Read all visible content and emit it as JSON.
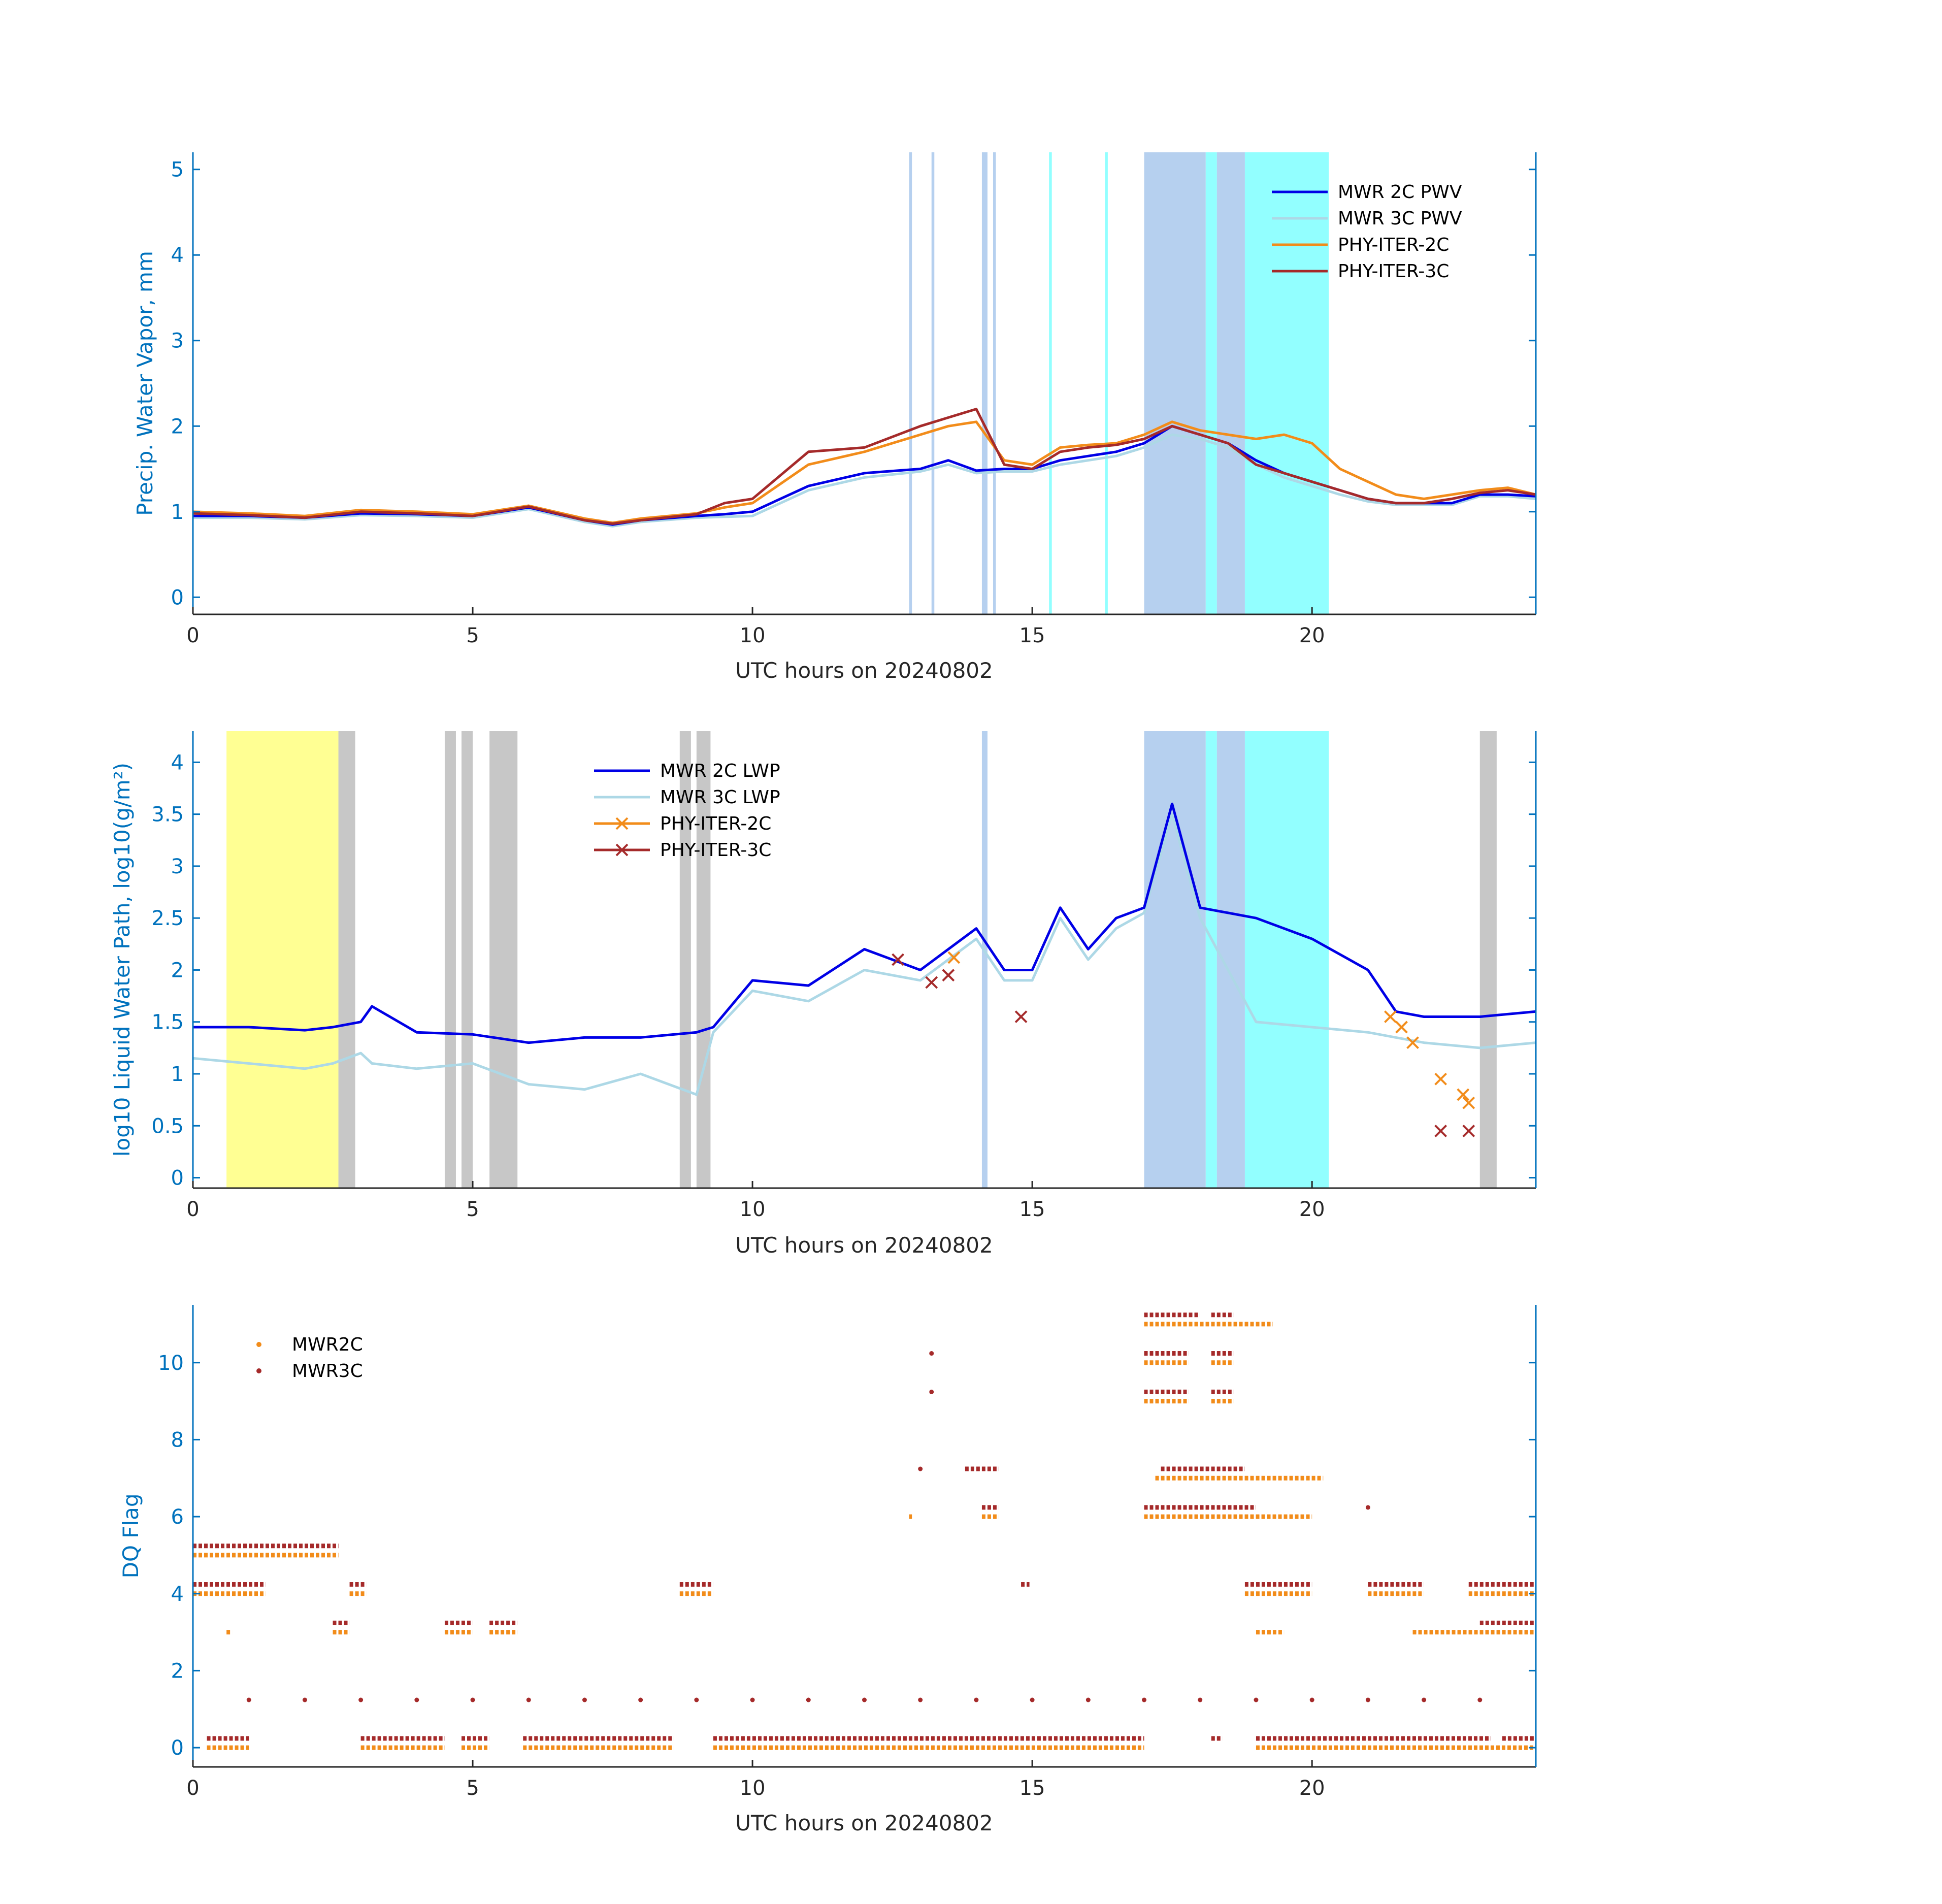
{
  "colors": {
    "mwr2c": "#0000E6",
    "mwr3c": "#ADD8E6",
    "phy2c": "#F28C1A",
    "phy3c": "#A52A2A",
    "axis_y": "#0072BD",
    "axis_x": "#262626",
    "shade_blue": "#A9C8EC",
    "shade_cyan": "#7FFFFF",
    "shade_gray": "#BDBDBD",
    "shade_yellow": "#FFFF80"
  },
  "chart_data": [
    {
      "type": "line",
      "title": "",
      "xlabel": "UTC hours on 20240802",
      "ylabel": "Precip. Water Vapor, mm",
      "xlim": [
        0,
        24
      ],
      "ylim": [
        -0.2,
        5.2
      ],
      "xticks": [
        0,
        5,
        10,
        15,
        20
      ],
      "yticks": [
        0,
        1,
        2,
        3,
        4,
        5
      ],
      "grid": false,
      "legend_position": "top-right",
      "legend": [
        "MWR 2C PWV",
        "MWR 3C PWV",
        "PHY-ITER-2C",
        "PHY-ITER-3C"
      ],
      "x": [
        0,
        1,
        2,
        3,
        4,
        5,
        6,
        7,
        7.5,
        8,
        9,
        9.5,
        10,
        11,
        12,
        13,
        13.5,
        14,
        14.5,
        15,
        15.5,
        16,
        16.5,
        17,
        17.5,
        18,
        18.5,
        19,
        19.5,
        20,
        20.5,
        21,
        21.5,
        22,
        22.5,
        23,
        23.5,
        24
      ],
      "series": [
        {
          "name": "MWR 2C PWV",
          "values": [
            0.95,
            0.95,
            0.93,
            0.98,
            0.97,
            0.95,
            1.05,
            0.9,
            0.85,
            0.9,
            0.95,
            0.97,
            1.0,
            1.3,
            1.45,
            1.5,
            1.6,
            1.48,
            1.5,
            1.5,
            1.6,
            1.65,
            1.7,
            1.8,
            2.0,
            1.9,
            1.8,
            1.6,
            1.45,
            1.35,
            1.25,
            1.15,
            1.1,
            1.1,
            1.1,
            1.2,
            1.2,
            1.18
          ]
        },
        {
          "name": "MWR 3C PWV",
          "values": [
            0.93,
            0.93,
            0.91,
            0.96,
            0.95,
            0.93,
            1.03,
            0.88,
            0.83,
            0.88,
            0.93,
            0.94,
            0.95,
            1.25,
            1.4,
            1.47,
            1.55,
            1.45,
            1.47,
            1.47,
            1.55,
            1.6,
            1.65,
            1.75,
            1.9,
            1.85,
            1.75,
            1.55,
            1.4,
            1.3,
            1.2,
            1.12,
            1.08,
            1.08,
            1.08,
            1.18,
            1.18,
            1.15
          ]
        },
        {
          "name": "PHY-ITER-2C",
          "values": [
            1.0,
            0.98,
            0.95,
            1.02,
            1.0,
            0.97,
            1.07,
            0.92,
            0.87,
            0.92,
            0.98,
            1.05,
            1.1,
            1.55,
            1.7,
            1.9,
            2.0,
            2.05,
            1.6,
            1.55,
            1.75,
            1.78,
            1.8,
            1.9,
            2.05,
            1.95,
            1.9,
            1.85,
            1.9,
            1.8,
            1.5,
            1.35,
            1.2,
            1.15,
            1.2,
            1.25,
            1.28,
            1.2
          ]
        },
        {
          "name": "PHY-ITER-3C",
          "values": [
            0.98,
            0.96,
            0.93,
            1.0,
            0.98,
            0.95,
            1.06,
            0.9,
            0.86,
            0.9,
            0.97,
            1.1,
            1.15,
            1.7,
            1.75,
            2.0,
            2.1,
            2.2,
            1.55,
            1.5,
            1.7,
            1.75,
            1.78,
            1.85,
            2.0,
            1.9,
            1.8,
            1.55,
            1.45,
            1.35,
            1.25,
            1.15,
            1.1,
            1.1,
            1.15,
            1.22,
            1.25,
            1.2
          ]
        }
      ],
      "shaded_spans": [
        {
          "color": "blue",
          "x": [
            12.8,
            12.85
          ]
        },
        {
          "color": "blue",
          "x": [
            13.2,
            13.25
          ]
        },
        {
          "color": "blue",
          "x": [
            14.1,
            14.2
          ]
        },
        {
          "color": "blue",
          "x": [
            14.3,
            14.35
          ]
        },
        {
          "color": "cyan",
          "x": [
            15.3,
            15.35
          ]
        },
        {
          "color": "cyan",
          "x": [
            16.3,
            16.35
          ]
        },
        {
          "color": "blue",
          "x": [
            17.0,
            18.1
          ]
        },
        {
          "color": "cyan",
          "x": [
            18.1,
            18.3
          ]
        },
        {
          "color": "blue",
          "x": [
            18.3,
            18.8
          ]
        },
        {
          "color": "cyan",
          "x": [
            18.8,
            20.3
          ]
        }
      ]
    },
    {
      "type": "line",
      "title": "",
      "xlabel": "UTC hours on 20240802",
      "ylabel": "log10 Liquid Water Path, log10(g/m²)",
      "xlim": [
        0,
        24
      ],
      "ylim": [
        -0.1,
        4.3
      ],
      "xticks": [
        0,
        5,
        10,
        15,
        20
      ],
      "yticks": [
        0,
        0.5,
        1,
        1.5,
        2,
        2.5,
        3,
        3.5,
        4
      ],
      "grid": false,
      "legend_position": "top-center",
      "legend": [
        "MWR 2C LWP",
        "MWR 3C LWP",
        "PHY-ITER-2C",
        "PHY-ITER-3C"
      ],
      "x": [
        0,
        1,
        2,
        2.5,
        3,
        3.2,
        4,
        5,
        6,
        7,
        8,
        9,
        9.3,
        10,
        11,
        12,
        13,
        14,
        14.5,
        15,
        15.5,
        16,
        16.5,
        17,
        17.5,
        18,
        19,
        20,
        21,
        21.5,
        22,
        23,
        24
      ],
      "series": [
        {
          "name": "MWR 2C LWP",
          "values": [
            1.45,
            1.45,
            1.42,
            1.45,
            1.5,
            1.65,
            1.4,
            1.38,
            1.3,
            1.35,
            1.35,
            1.4,
            1.45,
            1.9,
            1.85,
            2.2,
            2.0,
            2.4,
            2.0,
            2.0,
            2.6,
            2.2,
            2.5,
            2.6,
            3.6,
            2.6,
            2.5,
            2.3,
            2.0,
            1.6,
            1.55,
            1.55,
            1.6
          ]
        },
        {
          "name": "MWR 3C LWP",
          "values": [
            1.15,
            1.1,
            1.05,
            1.1,
            1.2,
            1.1,
            1.05,
            1.1,
            0.9,
            0.85,
            1.0,
            0.8,
            1.4,
            1.8,
            1.7,
            2.0,
            1.9,
            2.3,
            1.9,
            1.9,
            2.5,
            2.1,
            2.4,
            2.55,
            3.5,
            2.5,
            1.5,
            1.45,
            1.4,
            1.35,
            1.3,
            1.25,
            1.3
          ]
        }
      ],
      "markers": [
        {
          "series": "PHY-ITER-3C",
          "x": [
            12.6,
            13.2,
            13.5,
            14.8,
            22.3,
            22.8
          ],
          "y": [
            2.1,
            1.88,
            1.95,
            1.55,
            0.45,
            0.45
          ]
        },
        {
          "series": "PHY-ITER-2C",
          "x": [
            13.6,
            21.4,
            21.6,
            21.8,
            22.3,
            22.7,
            22.8
          ],
          "y": [
            2.12,
            1.55,
            1.45,
            1.3,
            0.95,
            0.8,
            0.72
          ]
        }
      ],
      "shaded_spans": [
        {
          "color": "yellow",
          "x": [
            0.6,
            2.6
          ]
        },
        {
          "color": "gray",
          "x": [
            2.6,
            2.9
          ]
        },
        {
          "color": "gray",
          "x": [
            4.5,
            4.7
          ]
        },
        {
          "color": "gray",
          "x": [
            4.8,
            5.0
          ]
        },
        {
          "color": "gray",
          "x": [
            5.3,
            5.8
          ]
        },
        {
          "color": "gray",
          "x": [
            8.7,
            8.9
          ]
        },
        {
          "color": "gray",
          "x": [
            9.0,
            9.25
          ]
        },
        {
          "color": "blue",
          "x": [
            14.1,
            14.2
          ]
        },
        {
          "color": "blue",
          "x": [
            17.0,
            18.1
          ]
        },
        {
          "color": "cyan",
          "x": [
            18.1,
            18.3
          ]
        },
        {
          "color": "blue",
          "x": [
            18.3,
            18.8
          ]
        },
        {
          "color": "cyan",
          "x": [
            18.8,
            20.3
          ]
        },
        {
          "color": "gray",
          "x": [
            23.0,
            23.3
          ]
        }
      ]
    },
    {
      "type": "scatter",
      "title": "",
      "xlabel": "UTC hours on 20240802",
      "ylabel": "DQ Flag",
      "xlim": [
        0,
        24
      ],
      "ylim": [
        -0.5,
        11.5
      ],
      "xticks": [
        0,
        5,
        10,
        15,
        20
      ],
      "yticks": [
        0,
        2,
        4,
        6,
        8,
        10
      ],
      "grid": false,
      "legend_position": "top-left",
      "legend": [
        "MWR2C",
        "MWR3C"
      ],
      "series": [
        {
          "name": "MWR2C",
          "segments": [
            {
              "y": 0,
              "x": [
                [
                  0.25,
                  1.0
                ],
                [
                  3.0,
                  4.5
                ],
                [
                  4.8,
                  5.3
                ],
                [
                  5.9,
                  8.6
                ],
                [
                  9.3,
                  17.0
                ],
                [
                  19.0,
                  24.0
                ]
              ]
            },
            {
              "y": 3,
              "x": [
                [
                  0.6,
                  0.7
                ],
                [
                  2.5,
                  2.8
                ],
                [
                  4.5,
                  5.0
                ],
                [
                  5.3,
                  5.8
                ],
                [
                  19.0,
                  19.5
                ],
                [
                  21.8,
                  24.0
                ]
              ]
            },
            {
              "y": 4,
              "x": [
                [
                  0.0,
                  1.3
                ],
                [
                  2.8,
                  3.1
                ],
                [
                  8.7,
                  9.3
                ],
                [
                  18.8,
                  20.0
                ],
                [
                  21.0,
                  22.0
                ],
                [
                  22.8,
                  24.0
                ]
              ]
            },
            {
              "y": 5,
              "x": [
                [
                  0.0,
                  2.6
                ]
              ]
            },
            {
              "y": 6,
              "x": [
                [
                  12.8,
                  12.85
                ],
                [
                  14.1,
                  14.4
                ],
                [
                  17.0,
                  20.0
                ]
              ]
            },
            {
              "y": 7,
              "x": [
                [
                  17.2,
                  20.2
                ]
              ]
            },
            {
              "y": 9,
              "x": [
                [
                  17.0,
                  17.8
                ],
                [
                  18.2,
                  18.6
                ]
              ]
            },
            {
              "y": 10,
              "x": [
                [
                  17.0,
                  17.8
                ],
                [
                  18.2,
                  18.6
                ]
              ]
            },
            {
              "y": 11,
              "x": [
                [
                  17.0,
                  19.3
                ]
              ]
            }
          ]
        },
        {
          "name": "MWR3C",
          "segments": [
            {
              "y": 0,
              "x": [
                [
                  0.25,
                  1.0
                ],
                [
                  3.0,
                  4.5
                ],
                [
                  4.8,
                  5.3
                ],
                [
                  5.9,
                  8.6
                ],
                [
                  9.3,
                  17.0
                ],
                [
                  18.2,
                  18.4
                ],
                [
                  19.0,
                  23.2
                ],
                [
                  23.4,
                  24.0
                ]
              ]
            },
            {
              "y": 1,
              "x": [
                [
                  1.0,
                  1.0
                ],
                [
                  2.0,
                  2.0
                ],
                [
                  3.0,
                  3.0
                ],
                [
                  4.0,
                  4.0
                ],
                [
                  5.0,
                  5.0
                ],
                [
                  6.0,
                  6.0
                ],
                [
                  7.0,
                  7.0
                ],
                [
                  8.0,
                  8.0
                ],
                [
                  9.0,
                  9.0
                ],
                [
                  10.0,
                  10.0
                ],
                [
                  11.0,
                  11.0
                ],
                [
                  12.0,
                  12.0
                ],
                [
                  13.0,
                  13.0
                ],
                [
                  14.0,
                  14.0
                ],
                [
                  15.0,
                  15.0
                ],
                [
                  16.0,
                  16.0
                ],
                [
                  17.0,
                  17.0
                ],
                [
                  18.0,
                  18.0
                ],
                [
                  19.0,
                  19.0
                ],
                [
                  20.0,
                  20.0
                ],
                [
                  21.0,
                  21.0
                ],
                [
                  22.0,
                  22.0
                ],
                [
                  23.0,
                  23.0
                ]
              ]
            },
            {
              "y": 3,
              "x": [
                [
                  2.5,
                  2.8
                ],
                [
                  4.5,
                  5.0
                ],
                [
                  5.3,
                  5.8
                ],
                [
                  23.0,
                  24.0
                ]
              ]
            },
            {
              "y": 4,
              "x": [
                [
                  0.0,
                  1.3
                ],
                [
                  2.8,
                  3.1
                ],
                [
                  8.7,
                  9.3
                ],
                [
                  14.8,
                  14.95
                ],
                [
                  18.8,
                  20.0
                ],
                [
                  21.0,
                  22.0
                ],
                [
                  22.8,
                  24.0
                ]
              ]
            },
            {
              "y": 5,
              "x": [
                [
                  0.0,
                  2.6
                ]
              ]
            },
            {
              "y": 6,
              "x": [
                [
                  14.1,
                  14.4
                ],
                [
                  17.0,
                  19.0
                ],
                [
                  21.0,
                  21.0
                ]
              ]
            },
            {
              "y": 7,
              "x": [
                [
                  13.0,
                  13.0
                ],
                [
                  13.8,
                  14.4
                ],
                [
                  17.3,
                  18.8
                ]
              ]
            },
            {
              "y": 9,
              "x": [
                [
                  13.2,
                  13.2
                ],
                [
                  17.0,
                  17.8
                ],
                [
                  18.2,
                  18.6
                ]
              ]
            },
            {
              "y": 10,
              "x": [
                [
                  13.2,
                  13.2
                ],
                [
                  17.0,
                  17.8
                ],
                [
                  18.2,
                  18.6
                ]
              ]
            },
            {
              "y": 11,
              "x": [
                [
                  17.0,
                  18.0
                ],
                [
                  18.2,
                  18.6
                ]
              ]
            }
          ]
        }
      ]
    }
  ]
}
